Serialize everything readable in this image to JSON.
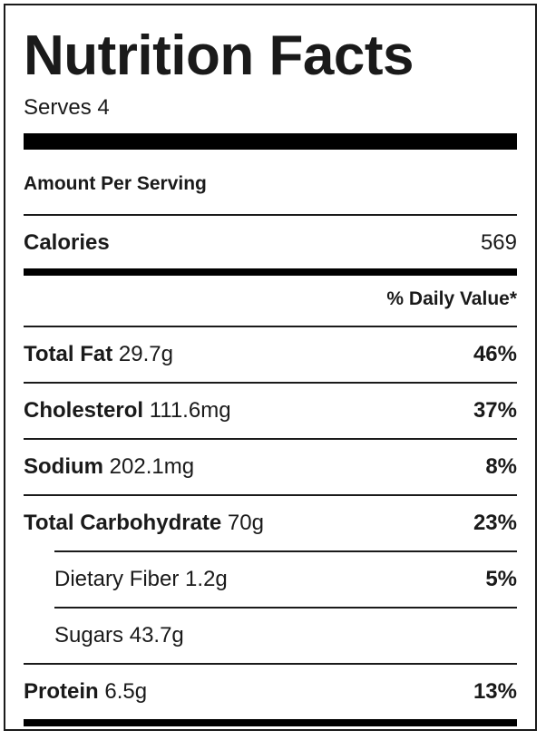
{
  "label": {
    "title": "Nutrition Facts",
    "serves": "Serves 4",
    "amount_per_serving": "Amount Per Serving",
    "calories": {
      "label": "Calories",
      "value": "569"
    },
    "daily_value_header": "% Daily Value*",
    "nutrients": [
      {
        "name": "Total Fat",
        "amount": "29.7g",
        "daily_value": "46%"
      },
      {
        "name": "Cholesterol",
        "amount": "111.6mg",
        "daily_value": "37%"
      },
      {
        "name": "Sodium",
        "amount": "202.1mg",
        "daily_value": "8%"
      },
      {
        "name": "Total Carbohydrate",
        "amount": "70g",
        "daily_value": "23%"
      },
      {
        "name": "Dietary Fiber",
        "amount": "1.2g",
        "daily_value": "5%"
      },
      {
        "name": "Sugars",
        "amount": "43.7g",
        "daily_value": ""
      },
      {
        "name": "Protein",
        "amount": "6.5g",
        "daily_value": "13%"
      }
    ]
  }
}
